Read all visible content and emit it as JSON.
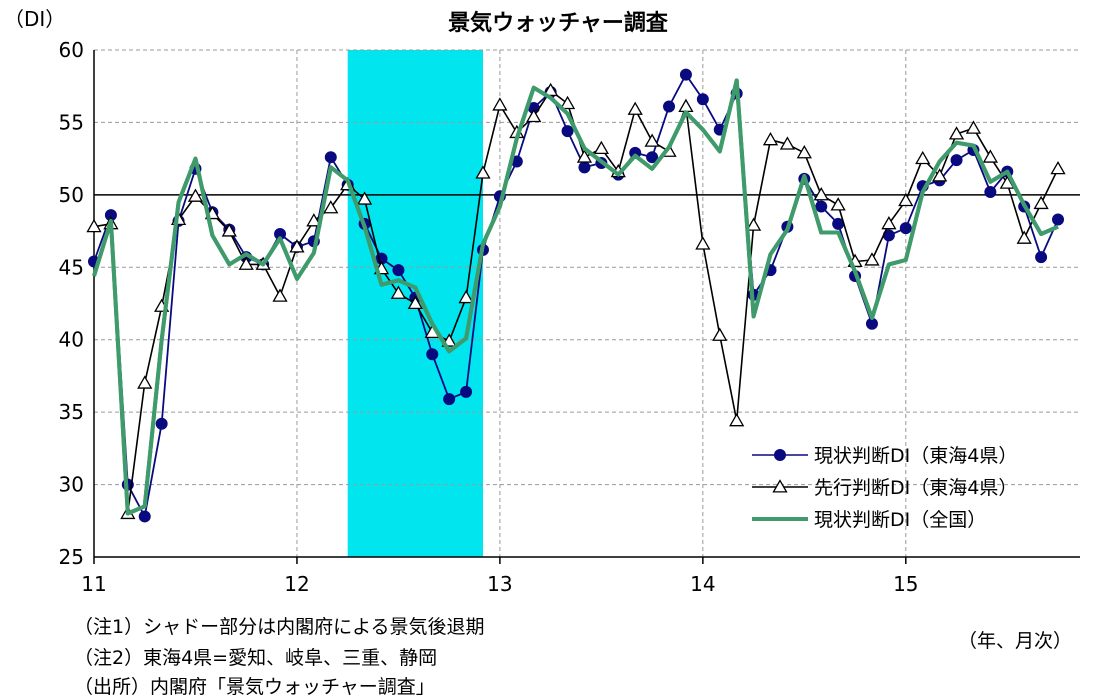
{
  "chart_data": {
    "type": "line",
    "title": "景気ウォッチャー調査",
    "ylabel": "（DI）",
    "xlabel": "（年、月次）",
    "ylim": [
      25,
      60
    ],
    "yticks": [
      25,
      30,
      35,
      40,
      45,
      50,
      55,
      60
    ],
    "xlim": [
      1,
      59
    ],
    "x_tick_labels": [
      {
        "month": 1,
        "label": "11"
      },
      {
        "month": 13,
        "label": "12"
      },
      {
        "month": 25,
        "label": "13"
      },
      {
        "month": 37,
        "label": "14"
      },
      {
        "month": 49,
        "label": "15"
      }
    ],
    "reference_line": 50,
    "recession_shading": {
      "start_month": 16,
      "end_month": 24,
      "color": "#00e5ee"
    },
    "grid": true,
    "legend_position": "bottom-right",
    "series": [
      {
        "name": "現状判断DI（東海4県）",
        "color": "#0a0a80",
        "marker": "circle-filled",
        "values": [
          45.4,
          48.6,
          30.0,
          27.8,
          34.2,
          48.2,
          51.8,
          48.8,
          47.6,
          45.7,
          45.2,
          47.3,
          46.4,
          46.8,
          52.6,
          50.7,
          48.0,
          45.6,
          44.8,
          42.9,
          39.0,
          35.9,
          36.4,
          46.2,
          49.9,
          52.3,
          56.0,
          57.1,
          54.4,
          51.9,
          52.2,
          51.4,
          52.9,
          52.6,
          56.1,
          58.3,
          56.6,
          54.5,
          57.0,
          43.1,
          44.8,
          47.8,
          51.1,
          49.2,
          48.0,
          44.4,
          41.1,
          47.2,
          47.7,
          50.6,
          51.0,
          52.4,
          53.1,
          50.2,
          51.6,
          49.2,
          45.7,
          48.3
        ]
      },
      {
        "name": "先行判断DI（東海4県）",
        "color": "#000000",
        "marker": "triangle-open",
        "values": [
          47.8,
          48.0,
          28.0,
          37.0,
          42.3,
          48.3,
          49.9,
          48.7,
          47.5,
          45.2,
          45.2,
          43.0,
          46.4,
          48.2,
          49.1,
          50.7,
          49.7,
          44.9,
          43.2,
          42.5,
          40.5,
          39.9,
          42.9,
          51.5,
          56.2,
          54.3,
          55.4,
          57.2,
          56.3,
          52.6,
          53.2,
          51.6,
          55.9,
          53.7,
          53.0,
          56.1,
          46.6,
          40.3,
          34.4,
          47.9,
          53.8,
          53.5,
          52.9,
          50.0,
          49.3,
          45.4,
          45.5,
          48.0,
          49.6,
          52.5,
          51.3,
          54.2,
          54.6,
          52.6,
          50.8,
          47.0,
          49.4,
          51.8
        ]
      },
      {
        "name": "現状判断DI（全国）",
        "color": "#3f9b6b",
        "marker": "none",
        "values": [
          44.4,
          48.2,
          28.0,
          28.5,
          40.0,
          49.5,
          52.5,
          47.2,
          45.2,
          45.9,
          45.2,
          47.0,
          44.2,
          46.0,
          51.9,
          51.0,
          47.8,
          43.8,
          44.1,
          43.6,
          41.1,
          39.2,
          40.1,
          46.6,
          49.2,
          53.9,
          57.4,
          56.7,
          55.6,
          53.2,
          52.3,
          51.4,
          52.7,
          51.8,
          53.3,
          55.7,
          54.5,
          53.0,
          57.9,
          41.6,
          45.9,
          47.6,
          51.3,
          47.4,
          47.4,
          44.7,
          41.5,
          45.2,
          45.5,
          50.2,
          52.3,
          53.6,
          53.4,
          50.9,
          51.6,
          49.3,
          47.3,
          47.8
        ]
      }
    ]
  },
  "notes": {
    "note1": "（注1）シャドー部分は内閣府による景気後退期",
    "note2": "（注2）東海4県=愛知、岐阜、三重、静岡",
    "source": "（出所）内閣府「景気ウォッチャー調査」"
  }
}
